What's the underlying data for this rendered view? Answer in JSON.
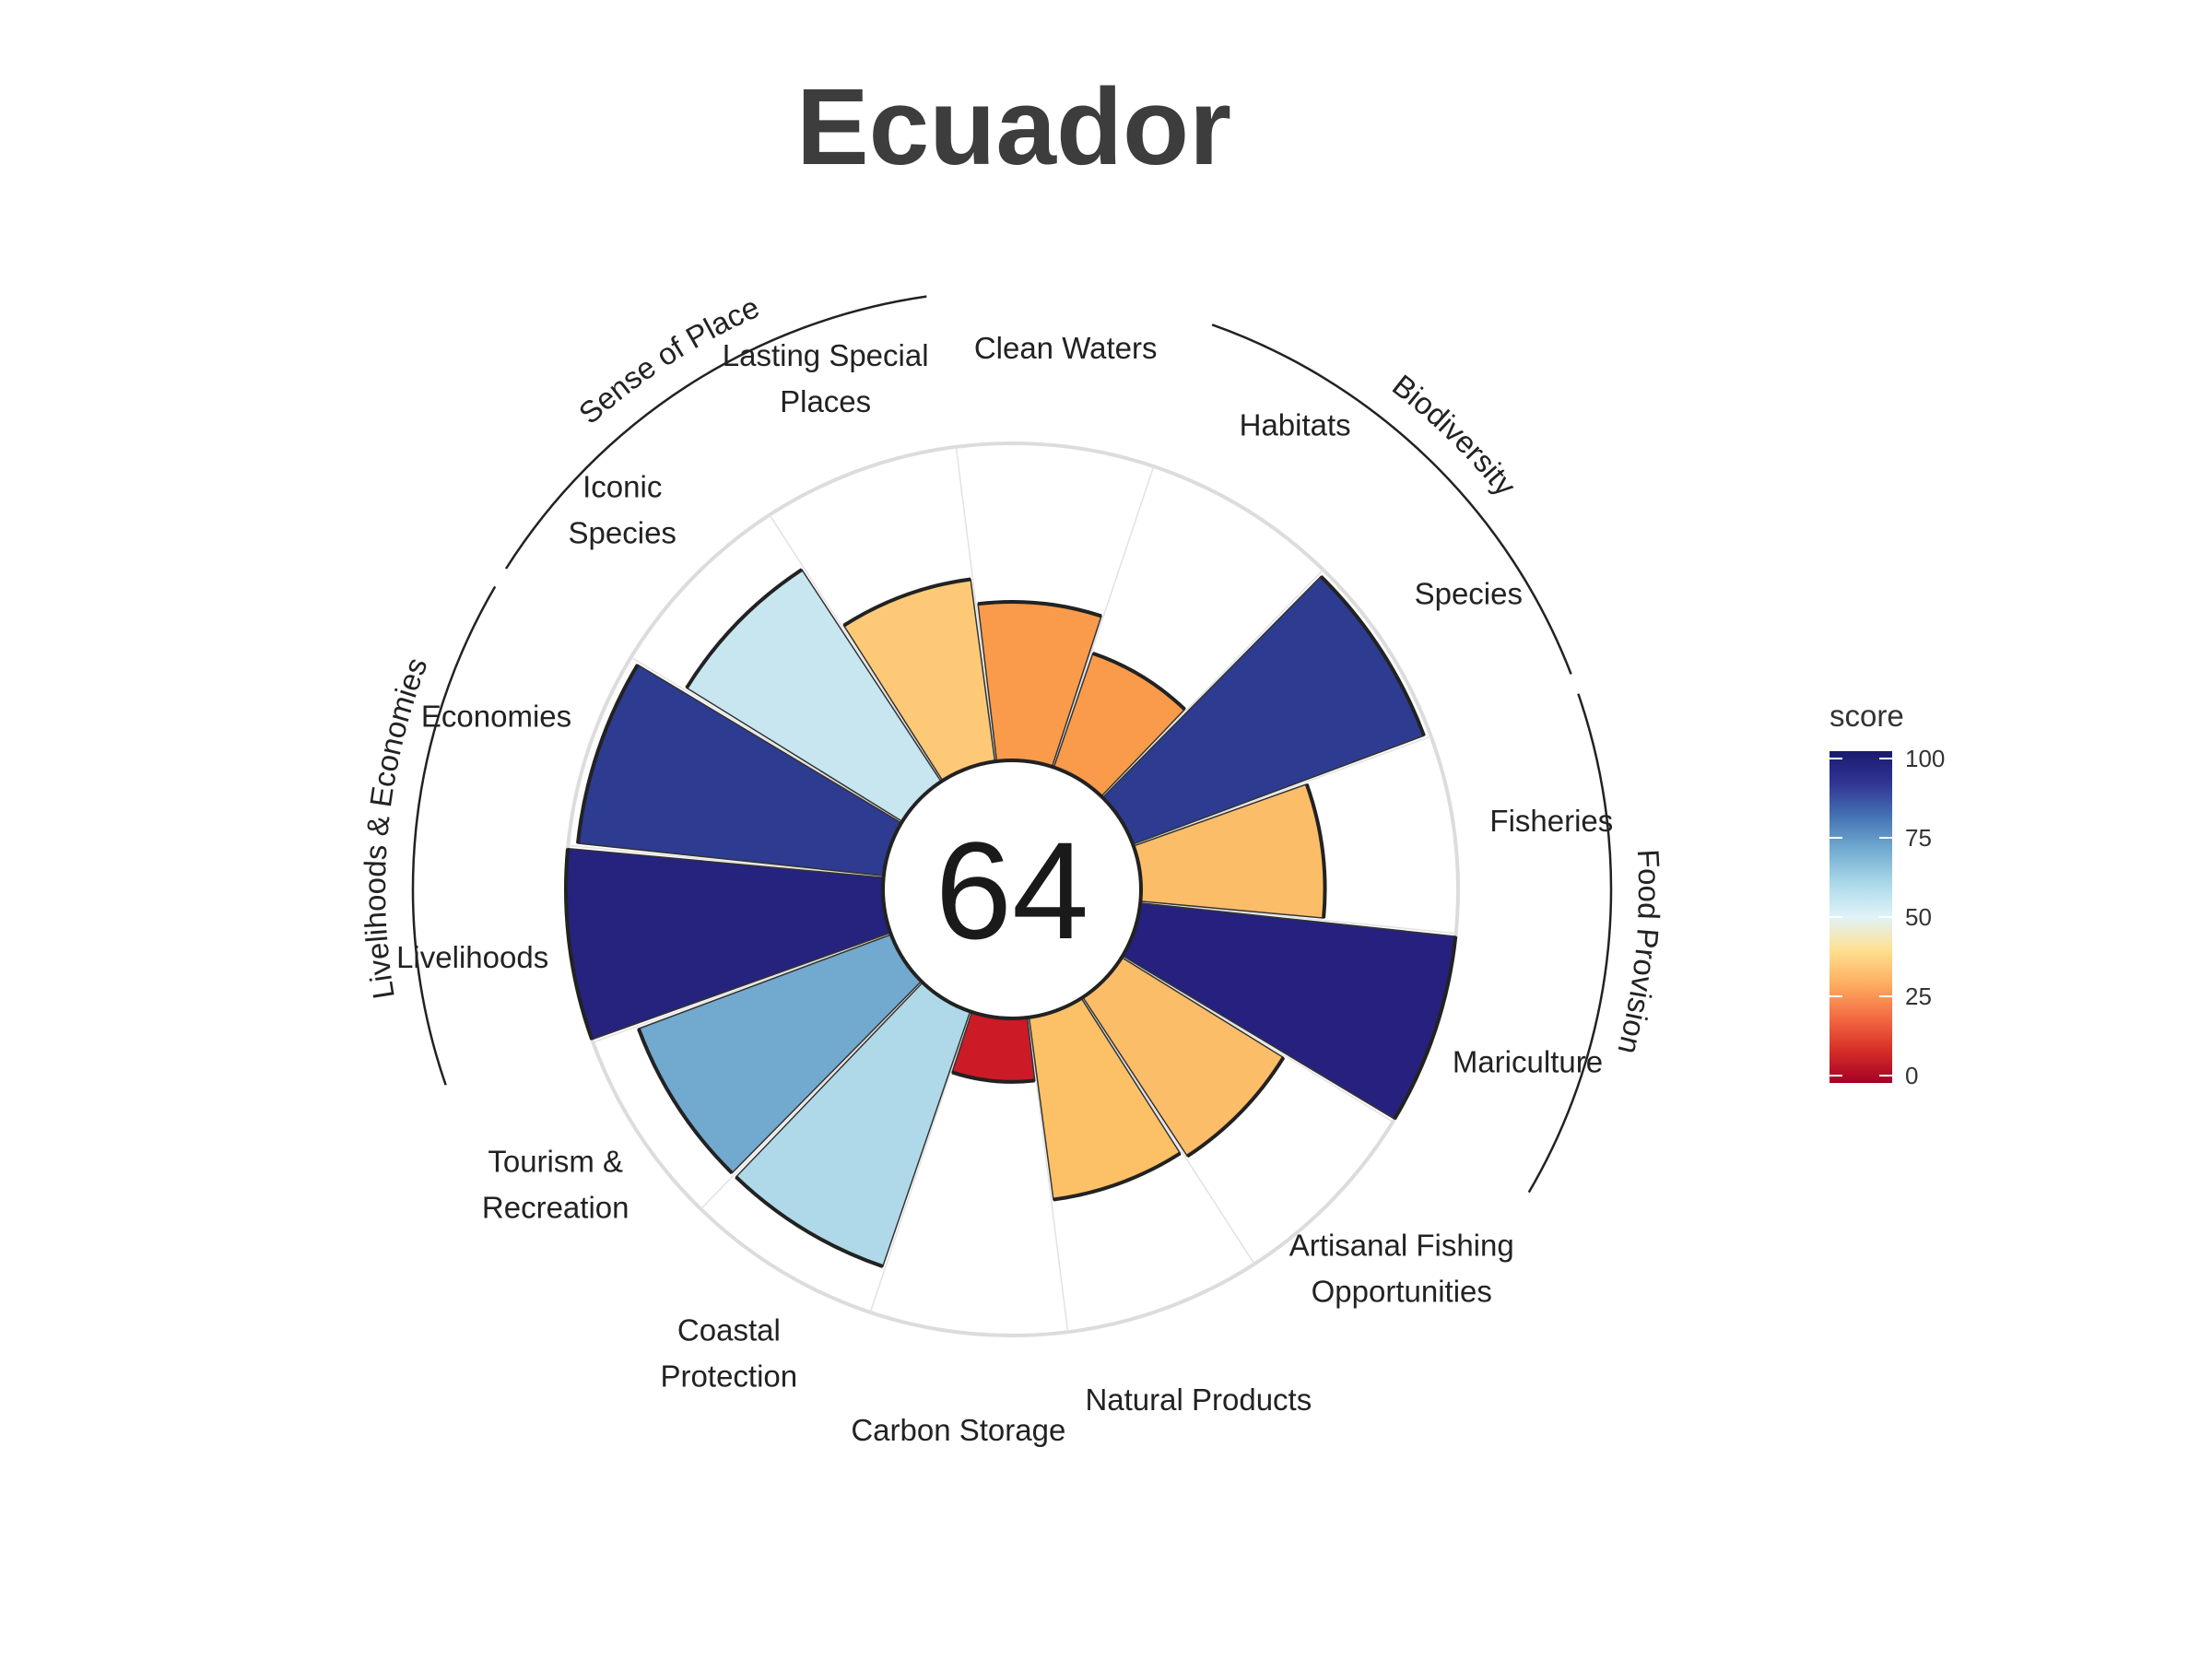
{
  "chart_data": {
    "type": "flower",
    "title": "Ecuador",
    "center_value": "64",
    "ylim": [
      0,
      100
    ],
    "goals": [
      {
        "label": [
          "Fisheries"
        ],
        "value": 58,
        "color": "#fcbd69"
      },
      {
        "label": [
          "Mariculture"
        ],
        "value": 100,
        "color": "#26217f"
      },
      {
        "label": [
          "Artisanal Fishing",
          "Opportunities"
        ],
        "value": 60,
        "color": "#fcbd69"
      },
      {
        "label": [
          "Natural Products"
        ],
        "value": 58,
        "color": "#fcc066"
      },
      {
        "label": [
          "Carbon Storage"
        ],
        "value": 20,
        "color": "#cc1a26"
      },
      {
        "label": [
          "Coastal",
          "Protection"
        ],
        "value": 85,
        "color": "#afd9e8"
      },
      {
        "label": [
          "Tourism &",
          "Recreation"
        ],
        "value": 85,
        "color": "#72a9ce"
      },
      {
        "label": [
          "Livelihoods"
        ],
        "value": 100,
        "color": "#25237e"
      },
      {
        "label": [
          "Economies"
        ],
        "value": 97,
        "color": "#2d3b90"
      },
      {
        "label": [
          "Iconic",
          "Species"
        ],
        "value": 80,
        "color": "#c8e6f0"
      },
      {
        "label": [
          "Lasting Special",
          "Places"
        ],
        "value": 58,
        "color": "#fdc976"
      },
      {
        "label": [
          "Clean Waters"
        ],
        "value": 50,
        "color": "#f99b4a"
      },
      {
        "label": [
          "Habitats"
        ],
        "value": 38,
        "color": "#f99b4a"
      },
      {
        "label": [
          "Species"
        ],
        "value": 98,
        "color": "#2d3c91"
      }
    ],
    "groups": [
      {
        "name": "Food Provision",
        "goals": [
          "Fisheries",
          "Mariculture"
        ]
      },
      {
        "name": "Biodiversity",
        "goals": [
          "Habitats",
          "Species"
        ]
      },
      {
        "name": "Sense of Place",
        "goals": [
          "Iconic Species",
          "Lasting Special Places"
        ]
      },
      {
        "name": "Livelihoods & Economies",
        "goals": [
          "Livelihoods",
          "Economies"
        ]
      }
    ],
    "legend": {
      "title": "score",
      "ticks": [
        "0",
        "25",
        "50",
        "75",
        "100"
      ],
      "position": "right",
      "colors": [
        "#a50026",
        "#d73027",
        "#f46d43",
        "#fdae61",
        "#fee090",
        "#e0f3f8",
        "#abd9e9",
        "#74add1",
        "#4575b4",
        "#313695",
        "#1a1a6e"
      ]
    }
  }
}
